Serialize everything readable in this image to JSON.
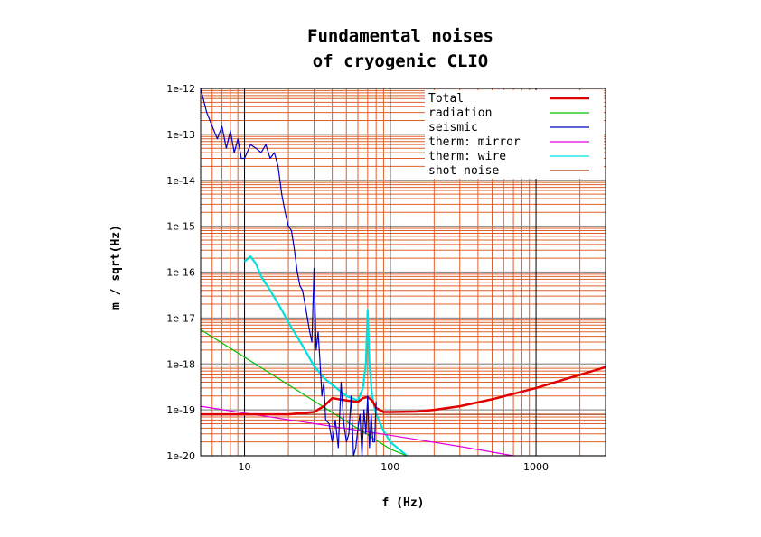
{
  "chart_data": {
    "type": "line",
    "title_lines": [
      "Fundamental noises",
      "of cryogenic CLIO"
    ],
    "xlabel": "f (Hz)",
    "ylabel": "m / sqrt(Hz)",
    "x_scale": "log",
    "y_scale": "log",
    "xlim": [
      5,
      3000
    ],
    "ylim": [
      1e-20,
      1e-12
    ],
    "x_ticks": [
      10,
      100,
      1000
    ],
    "x_tick_labels": [
      "10",
      "100",
      "1000"
    ],
    "y_ticks": [
      1e-12,
      1e-13,
      1e-14,
      1e-15,
      1e-16,
      1e-17,
      1e-18,
      1e-19,
      1e-20
    ],
    "y_tick_labels": [
      "1e-12",
      "1e-13",
      "1e-14",
      "1e-15",
      "1e-16",
      "1e-17",
      "1e-18",
      "1e-19",
      "1e-20"
    ],
    "grid": true,
    "grid_colors": {
      "major": "#000000",
      "minor": "#e0602a",
      "y_major": "#909090"
    },
    "legend_position": "top-right",
    "series": [
      {
        "name": "Total",
        "color": "#e00000",
        "x": [
          5,
          10,
          20,
          30,
          35,
          40,
          50,
          60,
          65,
          70,
          75,
          80,
          90,
          100,
          150,
          200,
          300,
          500,
          1000,
          2000,
          3000
        ],
        "y": [
          8e-20,
          8e-20,
          8e-20,
          9e-20,
          1.2e-19,
          1.8e-19,
          1.6e-19,
          1.5e-19,
          1.8e-19,
          1.9e-19,
          1.6e-19,
          1.1e-19,
          9e-20,
          9e-20,
          9.2e-20,
          1e-19,
          1.2e-19,
          1.7e-19,
          3e-19,
          5.8e-19,
          8.5e-19
        ]
      },
      {
        "name": "radiation",
        "color": "#00c000",
        "x": [
          5,
          10,
          20,
          50,
          100,
          130
        ],
        "y": [
          5.6e-18,
          1.4e-18,
          3.5e-19,
          5.6e-20,
          1.4e-20,
          8e-21
        ]
      },
      {
        "name": "seismic",
        "color": "#0000c0",
        "x": [
          5,
          5.5,
          6,
          6.5,
          7,
          7.5,
          8,
          8.5,
          9,
          9.5,
          10,
          11,
          12,
          13,
          14,
          15,
          16,
          17,
          18,
          19,
          20,
          21,
          22,
          23,
          24,
          25,
          26,
          27,
          28,
          29,
          30,
          31,
          32,
          33,
          34,
          35,
          36,
          38,
          40,
          42,
          44,
          46,
          48,
          50,
          52,
          54,
          56,
          58,
          60,
          62,
          64,
          66,
          68,
          70,
          72,
          74,
          76,
          78,
          80
        ],
        "y": [
          1e-12,
          3e-13,
          1.5e-13,
          8e-14,
          1.5e-13,
          5e-14,
          1.2e-13,
          4e-14,
          8e-14,
          3e-14,
          3e-14,
          6e-14,
          5e-14,
          4e-14,
          6e-14,
          3e-14,
          4e-14,
          2e-14,
          5e-15,
          2e-15,
          1e-15,
          8e-16,
          3e-16,
          1e-16,
          5e-17,
          4e-17,
          2e-17,
          1e-17,
          5e-18,
          3e-18,
          1.2e-16,
          2e-18,
          5e-18,
          1e-18,
          2e-19,
          4e-19,
          6e-20,
          5e-20,
          2e-20,
          6e-20,
          1.5e-20,
          4e-19,
          5e-20,
          2e-20,
          3e-20,
          2e-19,
          1e-20,
          1.5e-20,
          4e-20,
          8e-20,
          1e-20,
          1e-19,
          3e-20,
          2e-19,
          1.5e-20,
          8e-20,
          2e-20,
          2e-20,
          1.5e-19
        ]
      },
      {
        "name": "therm: mirror",
        "color": "#e000e0",
        "x": [
          5,
          10,
          30,
          100,
          300,
          700
        ],
        "y": [
          1.2e-19,
          8.5e-20,
          5e-20,
          2.8e-20,
          1.6e-20,
          1e-20
        ]
      },
      {
        "name": "therm: wire",
        "color": "#00e0e0",
        "x": [
          10,
          11,
          12,
          13,
          15,
          18,
          20,
          25,
          30,
          35,
          40,
          50,
          60,
          65,
          68,
          70,
          72,
          75,
          80,
          90,
          100,
          130
        ],
        "y": [
          1.7e-16,
          2.2e-16,
          1.5e-16,
          8e-17,
          4e-17,
          1.5e-17,
          8e-18,
          2.5e-18,
          9e-19,
          5e-19,
          3.5e-19,
          2e-19,
          1.6e-19,
          3e-19,
          1e-18,
          1.5e-17,
          1e-18,
          2e-19,
          8e-20,
          3.5e-20,
          2e-20,
          1e-20
        ]
      },
      {
        "name": "shot noise",
        "color": "#a0300a",
        "x": [
          5,
          3000
        ],
        "y": [
          8e-20,
          8e-20
        ]
      }
    ]
  }
}
